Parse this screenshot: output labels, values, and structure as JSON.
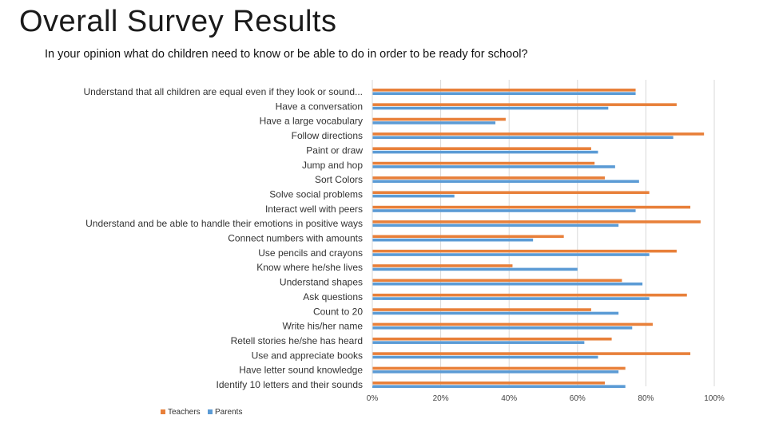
{
  "header": {
    "title": "Overall Survey Results",
    "subtitle": "In your opinion what do children need to know or be able to do in order to be ready for school?"
  },
  "colors": {
    "teachers": "#E8803A",
    "parents": "#5B9BD5",
    "grid": "#d9d9d9"
  },
  "chart_data": {
    "type": "bar",
    "orientation": "horizontal",
    "title": "Overall Survey Results",
    "subtitle": "In your opinion what do children need to know or be able to do in order to be ready for school?",
    "xlabel": "",
    "ylabel": "",
    "xlim": [
      0,
      100
    ],
    "grid": true,
    "legend": "bottom-left",
    "x_ticks": [
      "0%",
      "20%",
      "40%",
      "60%",
      "80%",
      "100%"
    ],
    "categories": [
      "Understand that all children are equal even if they look or sound...",
      "Have a conversation",
      "Have a large vocabulary",
      "Follow directions",
      "Paint or draw",
      "Jump and hop",
      "Sort Colors",
      "Solve social problems",
      "Interact well with peers",
      "Understand and be able to handle their emotions in positive ways",
      "Connect numbers with amounts",
      "Use pencils and crayons",
      "Know where he/she lives",
      "Understand shapes",
      "Ask questions",
      "Count to 20",
      "Write his/her name",
      "Retell stories he/she has heard",
      "Use and appreciate books",
      "Have letter sound knowledge",
      "Identify 10 letters and their sounds"
    ],
    "series": [
      {
        "name": "Teachers",
        "values": [
          77,
          89,
          39,
          97,
          64,
          65,
          68,
          81,
          93,
          96,
          56,
          89,
          41,
          73,
          92,
          64,
          82,
          70,
          93,
          74,
          68
        ]
      },
      {
        "name": "Parents",
        "values": [
          77,
          69,
          36,
          88,
          66,
          71,
          78,
          24,
          77,
          72,
          47,
          81,
          60,
          79,
          81,
          72,
          76,
          62,
          66,
          72,
          74
        ]
      }
    ]
  }
}
